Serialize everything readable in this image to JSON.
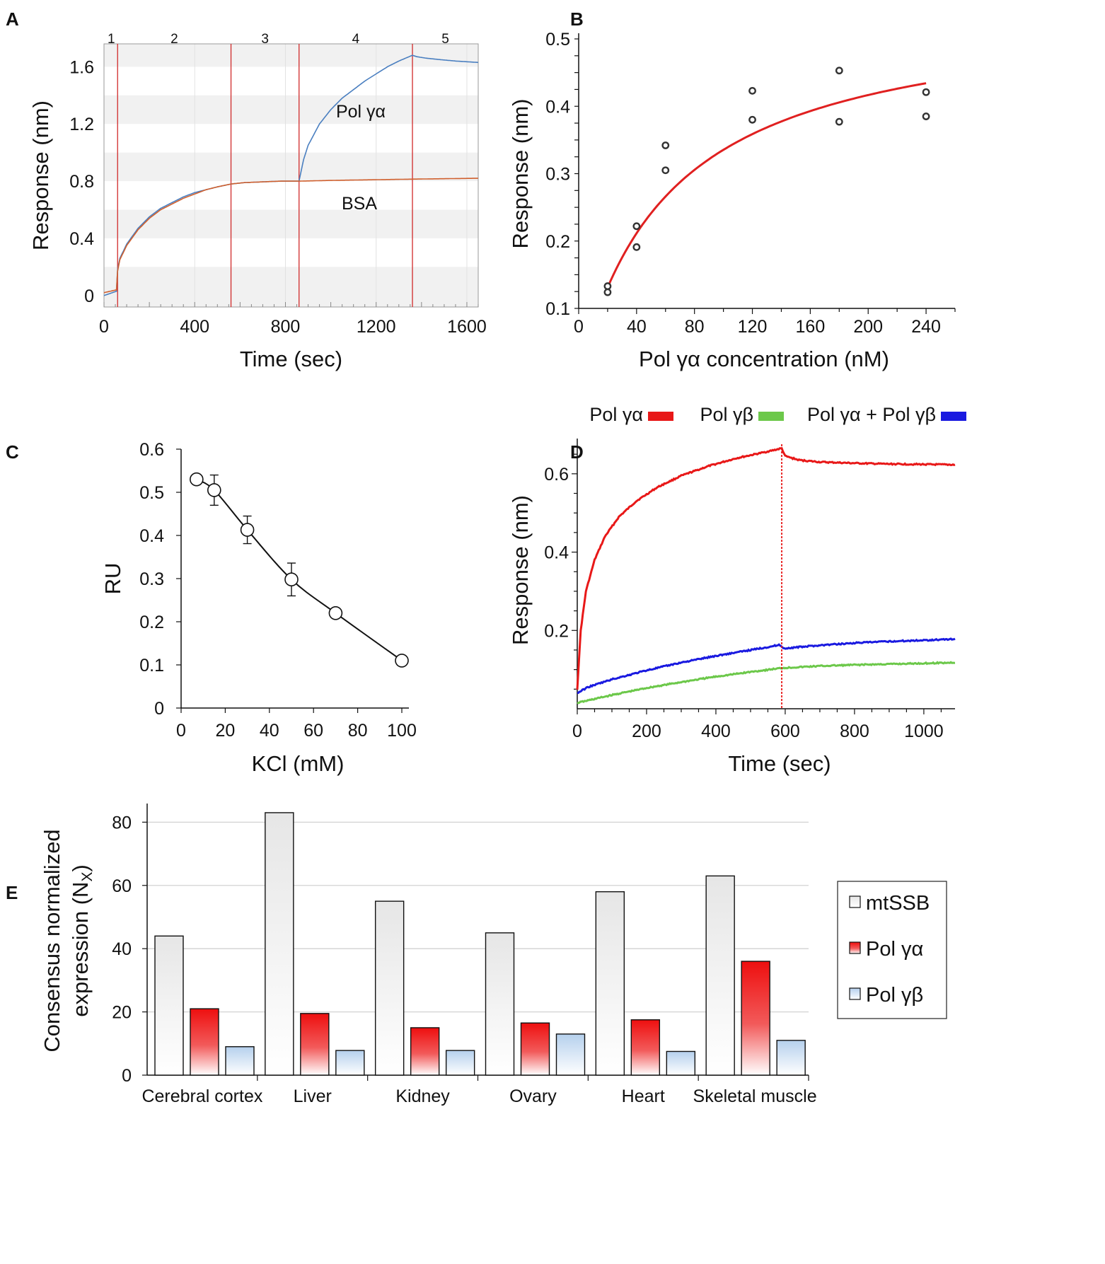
{
  "chart_data": [
    {
      "panel": "A",
      "type": "line",
      "xlabel": "Time (sec)",
      "ylabel": "Response (nm)",
      "xlim": [
        0,
        1650
      ],
      "ylim": [
        -0.08,
        1.76
      ],
      "xticks": [
        "0",
        "400",
        "800",
        "1200",
        "1600"
      ],
      "yticks": [
        "0",
        "0.4",
        "0.8",
        "1.2",
        "1.6"
      ],
      "phase_lines": [
        60,
        560,
        860,
        1360
      ],
      "phases": [
        "1",
        "2",
        "3",
        "4",
        "5"
      ],
      "annotations": [
        "Pol γα",
        "BSA"
      ],
      "series": [
        {
          "name": "Pol γα",
          "color": "#4a7fc0",
          "x": [
            0,
            55,
            60,
            70,
            100,
            150,
            200,
            250,
            300,
            350,
            400,
            450,
            500,
            560,
            620,
            700,
            780,
            860,
            880,
            900,
            950,
            1000,
            1050,
            1100,
            1150,
            1200,
            1250,
            1300,
            1360,
            1380,
            1420,
            1480,
            1550,
            1650
          ],
          "y": [
            0.0,
            0.03,
            0.18,
            0.26,
            0.36,
            0.47,
            0.55,
            0.61,
            0.65,
            0.69,
            0.72,
            0.74,
            0.76,
            0.78,
            0.79,
            0.795,
            0.8,
            0.8,
            0.95,
            1.05,
            1.2,
            1.3,
            1.38,
            1.44,
            1.5,
            1.55,
            1.6,
            1.64,
            1.68,
            1.67,
            1.66,
            1.65,
            1.64,
            1.63
          ]
        },
        {
          "name": "BSA",
          "color": "#d0602e",
          "x": [
            0,
            55,
            60,
            70,
            100,
            150,
            200,
            250,
            300,
            350,
            400,
            450,
            500,
            560,
            620,
            700,
            780,
            860,
            1000,
            1200,
            1400,
            1650
          ],
          "y": [
            0.02,
            0.04,
            0.17,
            0.25,
            0.35,
            0.46,
            0.54,
            0.6,
            0.64,
            0.68,
            0.71,
            0.74,
            0.76,
            0.78,
            0.79,
            0.795,
            0.8,
            0.8,
            0.805,
            0.81,
            0.815,
            0.82
          ]
        }
      ]
    },
    {
      "panel": "B",
      "type": "scatter",
      "xlabel": "Pol γα concentration (nM)",
      "ylabel": "Response (nm)",
      "xlim": [
        0,
        260
      ],
      "ylim": [
        0.1,
        0.5
      ],
      "xticks": [
        "0",
        "40",
        "80",
        "120",
        "160",
        "200",
        "240"
      ],
      "yticks": [
        "0.1",
        "0.2",
        "0.3",
        "0.4",
        "0.5"
      ],
      "points": [
        [
          20,
          0.133
        ],
        [
          20,
          0.124
        ],
        [
          40,
          0.222
        ],
        [
          40,
          0.191
        ],
        [
          60,
          0.342
        ],
        [
          60,
          0.305
        ],
        [
          120,
          0.423
        ],
        [
          120,
          0.38
        ],
        [
          180,
          0.453
        ],
        [
          180,
          0.377
        ],
        [
          240,
          0.421
        ],
        [
          240,
          0.385
        ]
      ],
      "fit": {
        "name": "hyperbolic fit",
        "color": "#e02020",
        "x_start": 20,
        "x_end": 240,
        "bmax": 0.55,
        "kd": 64
      }
    },
    {
      "panel": "C",
      "type": "line",
      "xlabel": "KCl (mM)",
      "ylabel": "RU",
      "xlim": [
        0,
        100
      ],
      "ylim": [
        0,
        0.6
      ],
      "xticks": [
        "0",
        "20",
        "40",
        "60",
        "80",
        "100"
      ],
      "yticks": [
        "0",
        "0.1",
        "0.2",
        "0.3",
        "0.4",
        "0.5",
        "0.6"
      ],
      "x": [
        7,
        15,
        30,
        50,
        70,
        100
      ],
      "y": [
        0.53,
        0.505,
        0.413,
        0.298,
        0.22,
        0.11
      ],
      "error": [
        0,
        0.035,
        0.032,
        0.038,
        0,
        0
      ]
    },
    {
      "panel": "D",
      "type": "line",
      "xlabel": "Time (sec)",
      "ylabel": "Response (nm)",
      "xlim": [
        0,
        1090
      ],
      "ylim": [
        0,
        0.69
      ],
      "xticks": [
        "0",
        "200",
        "400",
        "600",
        "800",
        "1000"
      ],
      "yticks": [
        "0.2",
        "0.4",
        "0.6"
      ],
      "vline": 590,
      "series": [
        {
          "name": "Pol γα",
          "color": "#e81818",
          "x": [
            0,
            10,
            25,
            50,
            80,
            120,
            170,
            230,
            300,
            380,
            460,
            540,
            590,
            600,
            640,
            700,
            800,
            900,
            1000,
            1090
          ],
          "y": [
            0.05,
            0.2,
            0.3,
            0.38,
            0.44,
            0.49,
            0.53,
            0.565,
            0.595,
            0.62,
            0.64,
            0.655,
            0.665,
            0.645,
            0.635,
            0.63,
            0.627,
            0.625,
            0.624,
            0.623
          ]
        },
        {
          "name": "Pol γβ",
          "color": "#6cc84a",
          "x": [
            0,
            100,
            200,
            300,
            400,
            500,
            590,
            700,
            800,
            900,
            1000,
            1090
          ],
          "y": [
            0.015,
            0.035,
            0.053,
            0.068,
            0.082,
            0.094,
            0.104,
            0.109,
            0.112,
            0.114,
            0.116,
            0.118
          ]
        },
        {
          "name": "Pol γα + Pol γβ",
          "color": "#1a1ae0",
          "x": [
            0,
            30,
            100,
            200,
            300,
            400,
            500,
            585,
            595,
            700,
            800,
            900,
            1000,
            1090
          ],
          "y": [
            0.04,
            0.055,
            0.075,
            0.098,
            0.118,
            0.135,
            0.15,
            0.163,
            0.154,
            0.162,
            0.168,
            0.172,
            0.175,
            0.178
          ]
        }
      ]
    },
    {
      "panel": "E",
      "type": "bar",
      "ylabel": "Consensus normalized expression (Nₓ)",
      "ylabel_lines": [
        "Consensus normalized",
        "expression (N"
      ],
      "ylabel_sub": "X",
      "ylabel_close": ")",
      "ylim": [
        0,
        85
      ],
      "yticks": [
        "0",
        "20",
        "40",
        "60",
        "80"
      ],
      "categories": [
        "Cerebral cortex",
        "Liver",
        "Kidney",
        "Ovary",
        "Heart",
        "Skeletal muscle"
      ],
      "series": [
        {
          "name": "mtSSB",
          "color": "#e8e8e8",
          "values": [
            44,
            83,
            55,
            45,
            58,
            63
          ]
        },
        {
          "name": "Pol γα",
          "color": "#ee1111",
          "values": [
            21,
            19.5,
            15,
            16.5,
            17.5,
            36
          ]
        },
        {
          "name": "Pol γβ",
          "color": "#b9d3ee",
          "values": [
            9,
            7.8,
            7.8,
            13,
            7.5,
            11
          ]
        }
      ]
    }
  ],
  "panel_labels": [
    "A",
    "B",
    "C",
    "D",
    "E"
  ]
}
